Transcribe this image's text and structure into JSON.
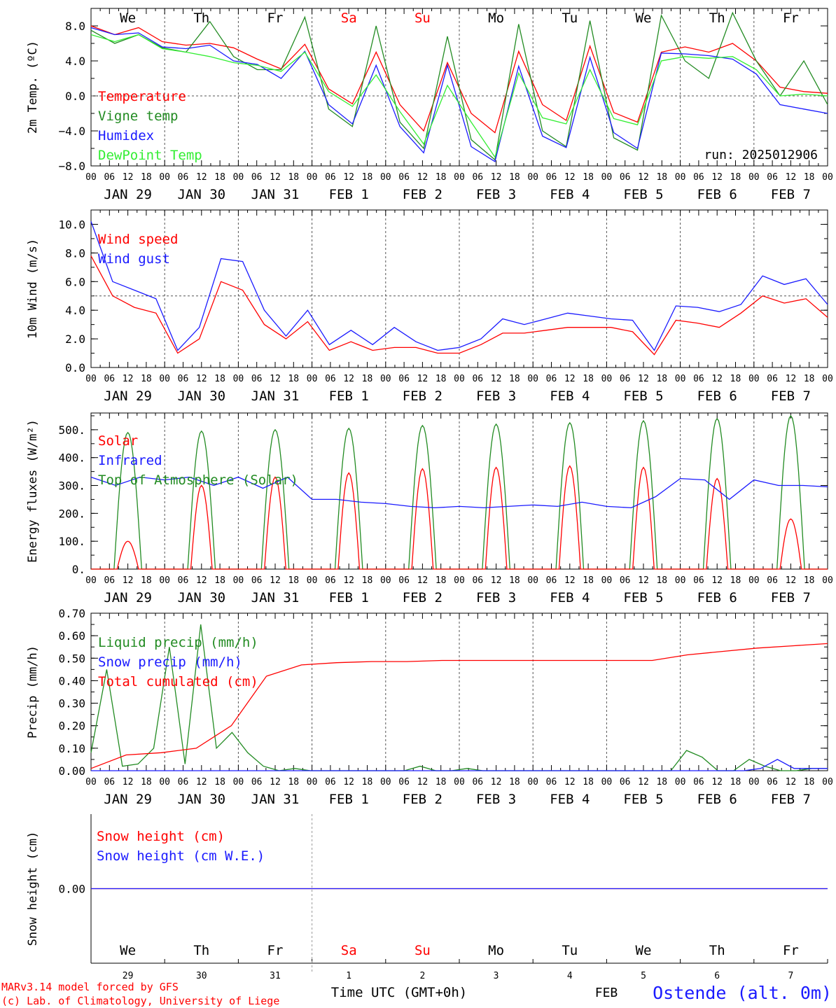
{
  "colors": {
    "red": "#ff0000",
    "darkgreen": "#228b22",
    "blue": "#1a1aff",
    "lightgreen": "#33ee33",
    "axis": "#000000",
    "grid": "#555555"
  },
  "days": [
    "We",
    "Th",
    "Fr",
    "Sa",
    "Su",
    "Mo",
    "Tu",
    "We",
    "Th",
    "Fr"
  ],
  "weekend_indices": [
    3,
    4
  ],
  "date_labels": [
    "JAN 29",
    "JAN 30",
    "JAN 31",
    "FEB  1",
    "FEB  2",
    "FEB  3",
    "FEB  4",
    "FEB  5",
    "FEB  6",
    "FEB  7"
  ],
  "hour_labels": [
    "00",
    "06",
    "12",
    "18"
  ],
  "hour_end_label": "00",
  "bottom_day_numbers": [
    "29",
    "30",
    "31",
    "1",
    "2",
    "3",
    "4",
    "5",
    "6",
    "7"
  ],
  "footer": {
    "model": "MARv3.14 model forced by GFS",
    "copyright": "(c) Lab. of Climatology, University of Liege",
    "axis_title": "Time UTC (GMT+0h)",
    "month": "FEB",
    "station": "Ostende (alt. 0m)"
  },
  "chart_data": [
    {
      "id": "temp",
      "type": "line",
      "ylabel": "2m Temp. (ºC)",
      "ylim": [
        -8,
        10
      ],
      "yticks": [
        -8,
        -4,
        0,
        4,
        8
      ],
      "ytick_labels": [
        "−8.0",
        "−4.0",
        "0.0",
        "4.0",
        "8.0"
      ],
      "ref_line": 0,
      "run_label": "run: 2025012906",
      "x_hours": [
        0,
        6,
        12,
        18,
        24,
        30,
        36,
        42,
        48,
        54,
        60,
        66,
        72,
        78,
        84,
        90,
        96,
        102,
        108,
        114,
        120,
        126,
        132,
        138,
        144,
        150,
        156,
        162,
        168,
        174,
        180,
        186,
        192,
        198,
        204,
        210,
        216,
        222,
        228,
        234,
        240
      ],
      "series": [
        {
          "name": "Temperature",
          "color": "red",
          "values": [
            8,
            7,
            7.8,
            6.2,
            5.8,
            6,
            5.5,
            4.2,
            3.1,
            5.9,
            0.8,
            -0.9,
            5,
            -1,
            -4,
            3.8,
            -2,
            -4.2,
            5.1,
            -1,
            -2.8,
            5.7,
            -1.9,
            -3,
            5,
            5.6,
            5,
            6,
            4,
            1,
            0.5,
            0.3
          ]
        },
        {
          "name": "Vigne temp",
          "color": "darkgreen",
          "values": [
            7.5,
            6,
            7,
            5.5,
            5,
            8.5,
            4.5,
            3,
            3,
            9,
            -1.5,
            -3.5,
            8,
            -3,
            -6,
            6.8,
            -5,
            -7.3,
            8.2,
            -4,
            -5.8,
            8.6,
            -4.8,
            -6.2,
            9.2,
            4,
            2,
            9.5,
            4,
            0,
            4,
            -1
          ]
        },
        {
          "name": "Humidex",
          "color": "blue",
          "values": [
            7.8,
            7,
            7.2,
            5.6,
            5.4,
            5.8,
            4,
            3.6,
            2,
            5.1,
            -1,
            -3.2,
            3.5,
            -3.5,
            -6.5,
            3.5,
            -5.8,
            -7.5,
            3.4,
            -4.6,
            -5.9,
            4.4,
            -4.2,
            -6,
            4.9,
            4.8,
            4.6,
            4.2,
            2.5,
            -1,
            -1.5,
            -2
          ]
        },
        {
          "name": "DewPoint Temp",
          "color": "lightgreen",
          "values": [
            7,
            6.2,
            7,
            5.4,
            5,
            4.5,
            3.8,
            3.5,
            2.8,
            5,
            0.5,
            -1.2,
            2.4,
            -1.8,
            -5.5,
            1.2,
            -3,
            -7,
            2.6,
            -2.5,
            -3.2,
            3,
            -2.6,
            -3.3,
            4,
            4.5,
            4.3,
            4.5,
            3,
            0,
            0.2,
            0
          ]
        }
      ]
    },
    {
      "id": "wind",
      "type": "line",
      "ylabel": "10m Wind (m/s)",
      "ylim": [
        0,
        11
      ],
      "yticks": [
        0,
        2,
        4,
        6,
        8,
        10
      ],
      "ytick_labels": [
        "0.0",
        "2.0",
        "4.0",
        "6.0",
        "8.0",
        "10.0"
      ],
      "ref_line": 5,
      "series": [
        {
          "name": "Wind speed",
          "color": "red",
          "values": [
            7.8,
            5,
            4.2,
            3.8,
            1,
            2,
            6,
            5.4,
            3,
            2,
            3.2,
            1.2,
            1.8,
            1.2,
            1.4,
            1.4,
            1,
            1,
            1.6,
            2.4,
            2.4,
            2.6,
            2.8,
            2.8,
            2.8,
            2.5,
            0.9,
            3.3,
            3.1,
            2.8,
            3.8,
            5,
            4.5,
            4.8,
            3.5
          ]
        },
        {
          "name": "Wind gust",
          "color": "blue",
          "values": [
            10.2,
            6,
            5.4,
            4.8,
            1.2,
            2.8,
            7.6,
            7.4,
            4,
            2.2,
            4,
            1.6,
            2.6,
            1.6,
            2.8,
            1.8,
            1.2,
            1.4,
            2,
            3.4,
            3,
            3.4,
            3.8,
            3.6,
            3.4,
            3.3,
            1.2,
            4.3,
            4.2,
            3.9,
            4.4,
            6.4,
            5.8,
            6.2,
            4.4
          ]
        }
      ]
    },
    {
      "id": "energy",
      "type": "line",
      "ylabel": "Energy fluxes (W/m²)",
      "ylim": [
        0,
        560
      ],
      "yticks": [
        0,
        100,
        200,
        300,
        400,
        500
      ],
      "ytick_labels": [
        "0.",
        "100.",
        "200.",
        "300.",
        "400.",
        "500."
      ],
      "series": [
        {
          "name": "Solar",
          "color": "red",
          "peaks": [
            100,
            300,
            330,
            345,
            360,
            365,
            370,
            365,
            325,
            180
          ]
        },
        {
          "name": "Infrared",
          "color": "blue",
          "values": [
            330,
            300,
            330,
            320,
            330,
            300,
            330,
            290,
            330,
            250,
            250,
            240,
            235,
            225,
            220,
            225,
            220,
            225,
            230,
            225,
            240,
            225,
            220,
            260,
            325,
            320,
            250,
            320,
            300,
            300,
            295
          ]
        },
        {
          "name": "Top of Atmosphere (Solar)",
          "color": "darkgreen",
          "peaks": [
            490,
            495,
            500,
            505,
            515,
            520,
            525,
            532,
            540,
            550
          ]
        }
      ]
    },
    {
      "id": "precip",
      "type": "line",
      "ylabel": "Precip (mm/h)",
      "ylim": [
        0,
        0.7
      ],
      "yticks": [
        0,
        0.1,
        0.2,
        0.3,
        0.4,
        0.5,
        0.6,
        0.7
      ],
      "ytick_labels": [
        "0.00",
        "0.10",
        "0.20",
        "0.30",
        "0.40",
        "0.50",
        "0.60",
        "0.70"
      ],
      "series": [
        {
          "name": "Liquid precip (mm/h)",
          "color": "darkgreen",
          "values": [
            0.08,
            0.45,
            0.02,
            0.03,
            0.1,
            0.55,
            0.03,
            0.65,
            0.1,
            0.17,
            0.08,
            0.02,
            0,
            0.01,
            0,
            0,
            0,
            0,
            0,
            0,
            0,
            0.02,
            0,
            0,
            0.01,
            0,
            0,
            0,
            0,
            0,
            0,
            0,
            0,
            0,
            0,
            0,
            0,
            0,
            0.09,
            0.06,
            0,
            0,
            0.05,
            0.02,
            0,
            0,
            0.01,
            0.01
          ]
        },
        {
          "name": "Snow precip (mm/h)",
          "color": "blue",
          "values": [
            0,
            0,
            0,
            0,
            0,
            0,
            0,
            0,
            0,
            0,
            0,
            0,
            0,
            0,
            0,
            0,
            0,
            0,
            0,
            0,
            0,
            0,
            0,
            0,
            0,
            0,
            0,
            0,
            0,
            0,
            0,
            0,
            0,
            0,
            0,
            0,
            0,
            0,
            0,
            0,
            0.01,
            0.05,
            0.01,
            0.01,
            0.01
          ]
        },
        {
          "name": "Total cumulated (cm)",
          "color": "red",
          "values": [
            0.01,
            0.07,
            0.08,
            0.1,
            0.2,
            0.42,
            0.47,
            0.48,
            0.485,
            0.485,
            0.49,
            0.49,
            0.49,
            0.49,
            0.49,
            0.49,
            0.49,
            0.515,
            0.53,
            0.545,
            0.555,
            0.565
          ]
        }
      ]
    },
    {
      "id": "snow",
      "type": "line",
      "ylabel": "Snow height (cm)",
      "ylim": [
        -1,
        1
      ],
      "yticks": [
        0
      ],
      "ytick_labels": [
        "0.00"
      ],
      "series": [
        {
          "name": "Snow height (cm)",
          "color": "red",
          "values": [
            0,
            0
          ]
        },
        {
          "name": "Snow height (cm W.E.)",
          "color": "blue",
          "values": [
            0,
            0
          ]
        }
      ]
    }
  ]
}
